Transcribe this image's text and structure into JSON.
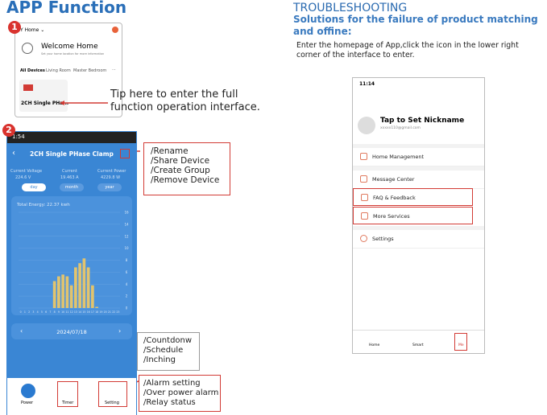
{
  "left": {
    "title": "APP Function",
    "badges": [
      "1",
      "2"
    ],
    "screen1": {
      "home": "Y Home ⌄",
      "welcome": "Welcome Home",
      "welcome_sub": "Set your home location for more information",
      "tabs": [
        "All Devices",
        "Living Room",
        "Master Bedroom",
        "···"
      ],
      "device": "2CH Single PHa..."
    },
    "tip": "Tip here to enter the full\nfunction operation interface.",
    "screen2": {
      "time": "1:54",
      "title": "2CH Single PHase Clamp",
      "stats": [
        {
          "label": "Current Voltage",
          "value": "224.6 V"
        },
        {
          "label": "Current",
          "value": "19.463 A"
        },
        {
          "label": "Current Power",
          "value": "4229.8 W"
        }
      ],
      "periods": [
        "day",
        "month",
        "year"
      ],
      "total_energy": "Total Energy: 22.37 kwh",
      "energy": {
        "categories": [
          "0",
          "1",
          "2",
          "3",
          "4",
          "5",
          "6",
          "7",
          "8",
          "9",
          "10",
          "11",
          "12",
          "13",
          "14",
          "15",
          "16",
          "17",
          "18",
          "19",
          "20",
          "21",
          "22",
          "23"
        ],
        "values": [
          0,
          0,
          0,
          0,
          0,
          0,
          0,
          0,
          4.5,
          5.3,
          5.6,
          5.3,
          3.8,
          6.8,
          7.5,
          8.3,
          6.8,
          3.8,
          0.2,
          0,
          0,
          0,
          0,
          0
        ],
        "color": "#e2c46e",
        "ylim": [
          0,
          16
        ],
        "yticks": [
          0,
          2,
          4,
          6,
          8,
          10,
          12,
          14,
          16
        ]
      },
      "date": "2024/07/18",
      "buttons": [
        "Power",
        "Timer",
        "Setting"
      ]
    },
    "callouts": [
      [
        "/Rename",
        "/Share Device",
        "/Create Group",
        "/Remove Device"
      ],
      [
        "/Countdonw",
        "/Schedule",
        "/Inching"
      ],
      [
        "/Alarm setting",
        "/Over power alarm",
        "/Relay status"
      ]
    ]
  },
  "right": {
    "title": "TROUBLESHOOTING",
    "subtitle": "Solutions for the failure of product matching and offine:",
    "instructions": "Enter the homepage of App,click the icon in the lower right corner of the interface to enter.",
    "phone": {
      "time": "11:14",
      "nickname": "Tap to Set Nickname",
      "email": "xxxxx110@gmail.com",
      "menu": [
        "Home Management",
        "Message Center",
        "FAQ & Feedback",
        "More Services",
        "Settings"
      ],
      "tabs": [
        "Home",
        "Smart",
        "Me"
      ]
    }
  }
}
